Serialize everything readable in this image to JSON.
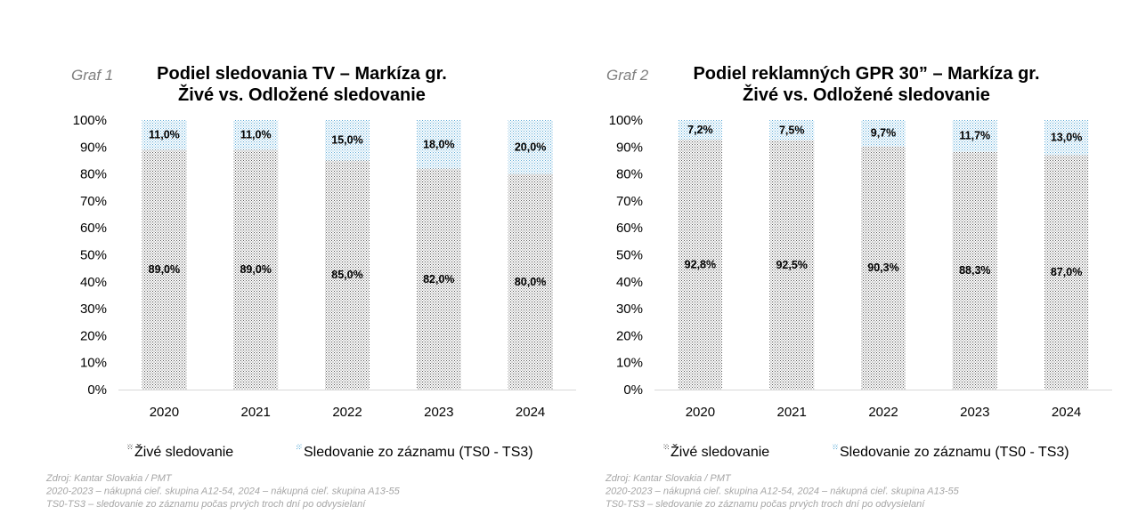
{
  "chart_data": [
    {
      "type": "bar",
      "stacked": true,
      "tag": "Graf 1",
      "title_lines": [
        "Podiel sledovania  TV – Markíza gr.",
        "Živé vs. Odložené sledovanie"
      ],
      "categories": [
        "2020",
        "2021",
        "2022",
        "2023",
        "2024"
      ],
      "series": [
        {
          "name": "Živé sledovanie",
          "values": [
            89.0,
            89.0,
            85.0,
            82.0,
            80.0
          ],
          "labels": [
            "89,0%",
            "89,0%",
            "85,0%",
            "82,0%",
            "80,0%"
          ],
          "color": "#8c8c8c"
        },
        {
          "name": "Sledovanie zo záznamu (TS0  - TS3)",
          "values": [
            11.0,
            11.0,
            15.0,
            18.0,
            20.0
          ],
          "labels": [
            "11,0%",
            "11,0%",
            "15,0%",
            "18,0%",
            "20,0%"
          ],
          "color": "#8ec9e8"
        }
      ],
      "yticks": [
        "0%",
        "10%",
        "20%",
        "30%",
        "40%",
        "50%",
        "60%",
        "70%",
        "80%",
        "90%",
        "100%"
      ],
      "ylim": [
        0,
        100
      ],
      "legend_position": "bottom",
      "notes": [
        "Zdroj: Kantar Slovakia / PMT",
        "2020-2023 – nákupná cieľ. skupina A12-54, 2024 – nákupná cieľ. skupina A13-55",
        "TS0-TS3 –  sledovanie zo záznamu počas prvých troch dní po odvysielaní"
      ]
    },
    {
      "type": "bar",
      "stacked": true,
      "tag": "Graf 2",
      "title_lines": [
        "Podiel reklamných GPR 30” – Markíza gr.",
        "Živé vs. Odložené sledovanie"
      ],
      "categories": [
        "2020",
        "2021",
        "2022",
        "2023",
        "2024"
      ],
      "series": [
        {
          "name": "Živé sledovanie",
          "values": [
            92.8,
            92.5,
            90.3,
            88.3,
            87.0
          ],
          "labels": [
            "92,8%",
            "92,5%",
            "90,3%",
            "88,3%",
            "87,0%"
          ],
          "color": "#8c8c8c"
        },
        {
          "name": "Sledovanie zo záznamu (TS0  - TS3)",
          "values": [
            7.2,
            7.5,
            9.7,
            11.7,
            13.0
          ],
          "labels": [
            "7,2%",
            "7,5%",
            "9,7%",
            "11,7%",
            "13,0%"
          ],
          "color": "#8ec9e8"
        }
      ],
      "yticks": [
        "0%",
        "10%",
        "20%",
        "30%",
        "40%",
        "50%",
        "60%",
        "70%",
        "80%",
        "90%",
        "100%"
      ],
      "ylim": [
        0,
        100
      ],
      "legend_position": "bottom",
      "notes": [
        "Zdroj: Kantar Slovakia / PMT",
        "2020-2023 – nákupná cieľ. skupina A12-54, 2024 – nákupná cieľ. skupina A13-55",
        "TS0-TS3 –  sledovanie zo záznamu počas prvých troch dní po odvysielaní"
      ]
    }
  ]
}
